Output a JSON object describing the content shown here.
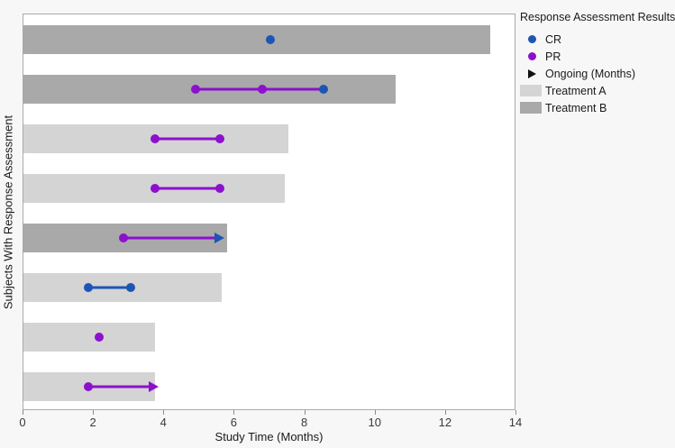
{
  "chart_data": {
    "type": "bar",
    "variant": "swimmer-plot",
    "xlabel": "Study Time (Months)",
    "ylabel": "Subjects With Response Assessment",
    "xlim": [
      0,
      14
    ],
    "xticks": [
      0,
      2,
      4,
      6,
      8,
      10,
      12,
      14
    ],
    "grid": false,
    "colors": {
      "cr": "#1d55b6",
      "pr": "#8d10cd",
      "ongoing": "#111111",
      "treatment_a": "#d4d4d4",
      "treatment_b": "#a9a9a9",
      "plot_bg": "#ffffff",
      "figure_bg": "#f7f7f7",
      "plot_border": "#a9a9a9"
    },
    "subjects": [
      {
        "treatment": "B",
        "bar_length": 13.3,
        "markers": [
          {
            "type": "CR",
            "x": 7.05
          }
        ]
      },
      {
        "treatment": "B",
        "bar_length": 10.6,
        "markers": [
          {
            "type": "PR",
            "x": 4.9
          },
          {
            "type": "PR",
            "x": 6.8
          },
          {
            "type": "CR",
            "x": 8.55
          }
        ],
        "connector": {
          "from": 4.9,
          "to": 8.55,
          "color_type": "PR"
        }
      },
      {
        "treatment": "A",
        "bar_length": 7.55,
        "markers": [
          {
            "type": "PR",
            "x": 3.75
          },
          {
            "type": "PR",
            "x": 5.6
          }
        ],
        "connector": {
          "from": 3.75,
          "to": 5.6,
          "color_type": "PR"
        }
      },
      {
        "treatment": "A",
        "bar_length": 7.45,
        "markers": [
          {
            "type": "PR",
            "x": 3.75
          },
          {
            "type": "PR",
            "x": 5.6
          }
        ],
        "connector": {
          "from": 3.75,
          "to": 5.6,
          "color_type": "PR"
        }
      },
      {
        "treatment": "B",
        "bar_length": 5.8,
        "markers": [
          {
            "type": "PR",
            "x": 2.85
          }
        ],
        "connector": {
          "from": 2.85,
          "to": 5.45,
          "color_type": "PR"
        },
        "arrow": {
          "tip": 5.72,
          "color_type": "CR"
        }
      },
      {
        "treatment": "A",
        "bar_length": 5.65,
        "markers": [
          {
            "type": "CR",
            "x": 1.85
          },
          {
            "type": "CR",
            "x": 3.05
          }
        ],
        "connector": {
          "from": 1.85,
          "to": 3.05,
          "color_type": "CR"
        }
      },
      {
        "treatment": "A",
        "bar_length": 3.75,
        "markers": [
          {
            "type": "PR",
            "x": 2.15
          }
        ]
      },
      {
        "treatment": "A",
        "bar_length": 3.75,
        "markers": [
          {
            "type": "PR",
            "x": 1.85
          }
        ],
        "connector": {
          "from": 1.85,
          "to": 3.6,
          "color_type": "PR"
        },
        "arrow": {
          "tip": 3.85,
          "color_type": "PR"
        }
      }
    ],
    "legend": {
      "title": "Response Assessment Results",
      "items": [
        {
          "label": "CR",
          "marker": "dot",
          "color_key": "cr"
        },
        {
          "label": "PR",
          "marker": "dot",
          "color_key": "pr"
        },
        {
          "label": "Ongoing (Months)",
          "marker": "triangle",
          "color_key": "ongoing"
        },
        {
          "label": "Treatment A",
          "marker": "swatch",
          "color_key": "treatment_a"
        },
        {
          "label": "Treatment B",
          "marker": "swatch",
          "color_key": "treatment_b"
        }
      ]
    }
  }
}
